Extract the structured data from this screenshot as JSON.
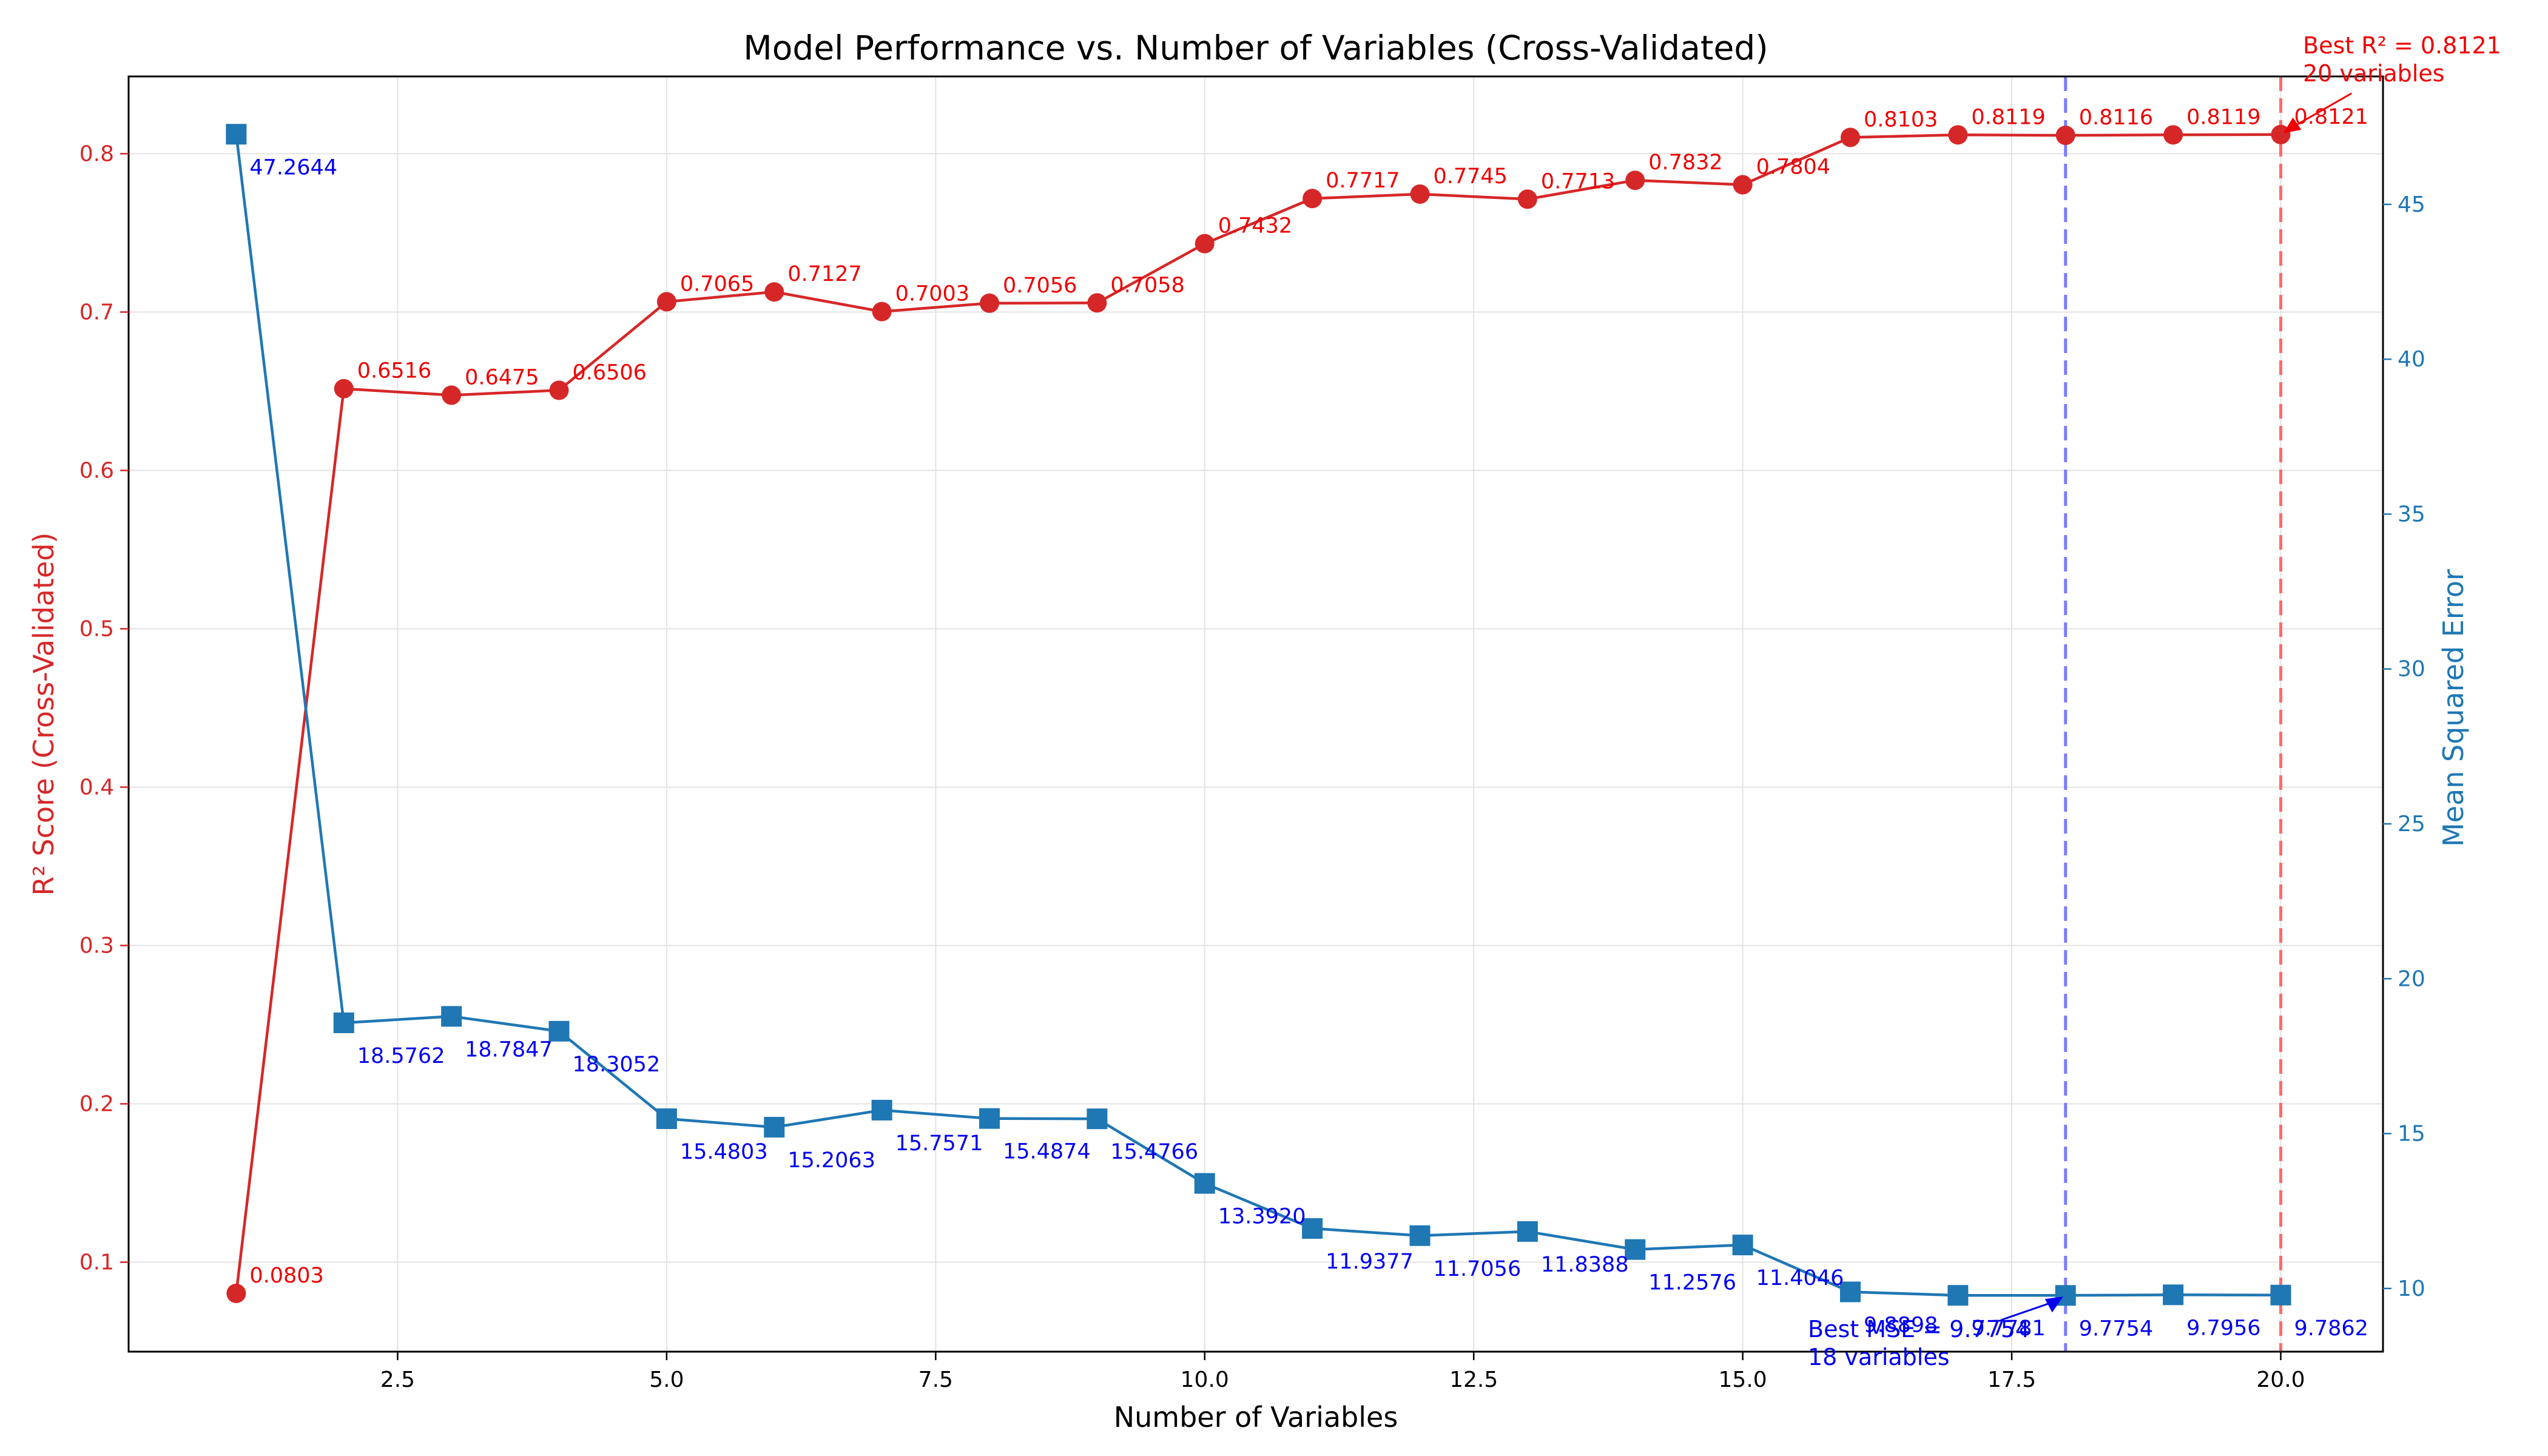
{
  "chart_data": {
    "type": "line",
    "title": "Model Performance vs. Number of Variables (Cross-Validated)",
    "xlabel": "Number of Variables",
    "ylabel_left": "R² Score (Cross-Validated)",
    "ylabel_right": "Mean Squared Error",
    "x": [
      1,
      2,
      3,
      4,
      5,
      6,
      7,
      8,
      9,
      10,
      11,
      12,
      13,
      14,
      15,
      16,
      17,
      18,
      19,
      20
    ],
    "xlim": [
      0.0,
      20.95
    ],
    "ylim_left": [
      0.0435,
      0.8488
    ],
    "ylim_right": [
      7.96,
      49.13
    ],
    "x_ticks": [
      2.5,
      5.0,
      7.5,
      10.0,
      12.5,
      15.0,
      17.5,
      20.0
    ],
    "x_tick_labels": [
      "2.5",
      "5.0",
      "7.5",
      "10.0",
      "12.5",
      "15.0",
      "17.5",
      "20.0"
    ],
    "y_left_ticks": [
      0.1,
      0.2,
      0.3,
      0.4,
      0.5,
      0.6,
      0.7,
      0.8
    ],
    "y_left_tick_labels": [
      "0.1",
      "0.2",
      "0.3",
      "0.4",
      "0.5",
      "0.6",
      "0.7",
      "0.8"
    ],
    "y_right_ticks": [
      10,
      15,
      20,
      25,
      30,
      35,
      40,
      45
    ],
    "y_right_tick_labels": [
      "10",
      "15",
      "20",
      "25",
      "30",
      "35",
      "40",
      "45"
    ],
    "grid": true,
    "colors": {
      "r2": "#d62728",
      "mse": "#1f77b4",
      "r2_label": "#ee0000",
      "mse_label": "#0000ee",
      "best_r2_line": "#ff6b6b",
      "best_mse_line": "#7b7bff"
    },
    "series": [
      {
        "axis": "left",
        "marker": "circle",
        "values": [
          0.0803,
          0.6516,
          0.6475,
          0.6506,
          0.7065,
          0.7127,
          0.7003,
          0.7056,
          0.7058,
          0.7432,
          0.7717,
          0.7745,
          0.7713,
          0.7832,
          0.7804,
          0.8103,
          0.8119,
          0.8116,
          0.8119,
          0.8121
        ],
        "labels": [
          "0.0803",
          "0.6516",
          "0.6475",
          "0.6506",
          "0.7065",
          "0.7127",
          "0.7003",
          "0.7056",
          "0.7058",
          "0.7432",
          "0.7717",
          "0.7745",
          "0.7713",
          "0.7832",
          "0.7804",
          "0.8103",
          "0.8119",
          "0.8116",
          "0.8119",
          "0.8121"
        ]
      },
      {
        "axis": "right",
        "marker": "square",
        "values": [
          47.2644,
          18.5762,
          18.7847,
          18.3052,
          15.4803,
          15.2063,
          15.7571,
          15.4874,
          15.4766,
          13.392,
          11.9377,
          11.7056,
          11.8388,
          11.2576,
          11.4046,
          9.8898,
          9.7781,
          9.7754,
          9.7956,
          9.7862
        ],
        "labels": [
          "47.2644",
          "18.5762",
          "18.7847",
          "18.3052",
          "15.4803",
          "15.2063",
          "15.7571",
          "15.4874",
          "15.4766",
          "13.3920",
          "11.9377",
          "11.7056",
          "11.8388",
          "11.2576",
          "11.4046",
          "9.8898",
          "9.7781",
          "9.7754",
          "9.7956",
          "9.7862"
        ]
      }
    ],
    "annotations": [
      {
        "axis": "left",
        "x": 20,
        "y": 0.8121,
        "lines": [
          "Best R² = 0.8121",
          "20 variables"
        ]
      },
      {
        "axis": "right",
        "x": 18,
        "y": 9.7754,
        "lines": [
          "Best MSE = 9.7754",
          "18 variables"
        ]
      }
    ],
    "reference_lines": [
      {
        "x": 20,
        "color_key": "best_r2_line"
      },
      {
        "x": 18,
        "color_key": "best_mse_line"
      }
    ]
  }
}
